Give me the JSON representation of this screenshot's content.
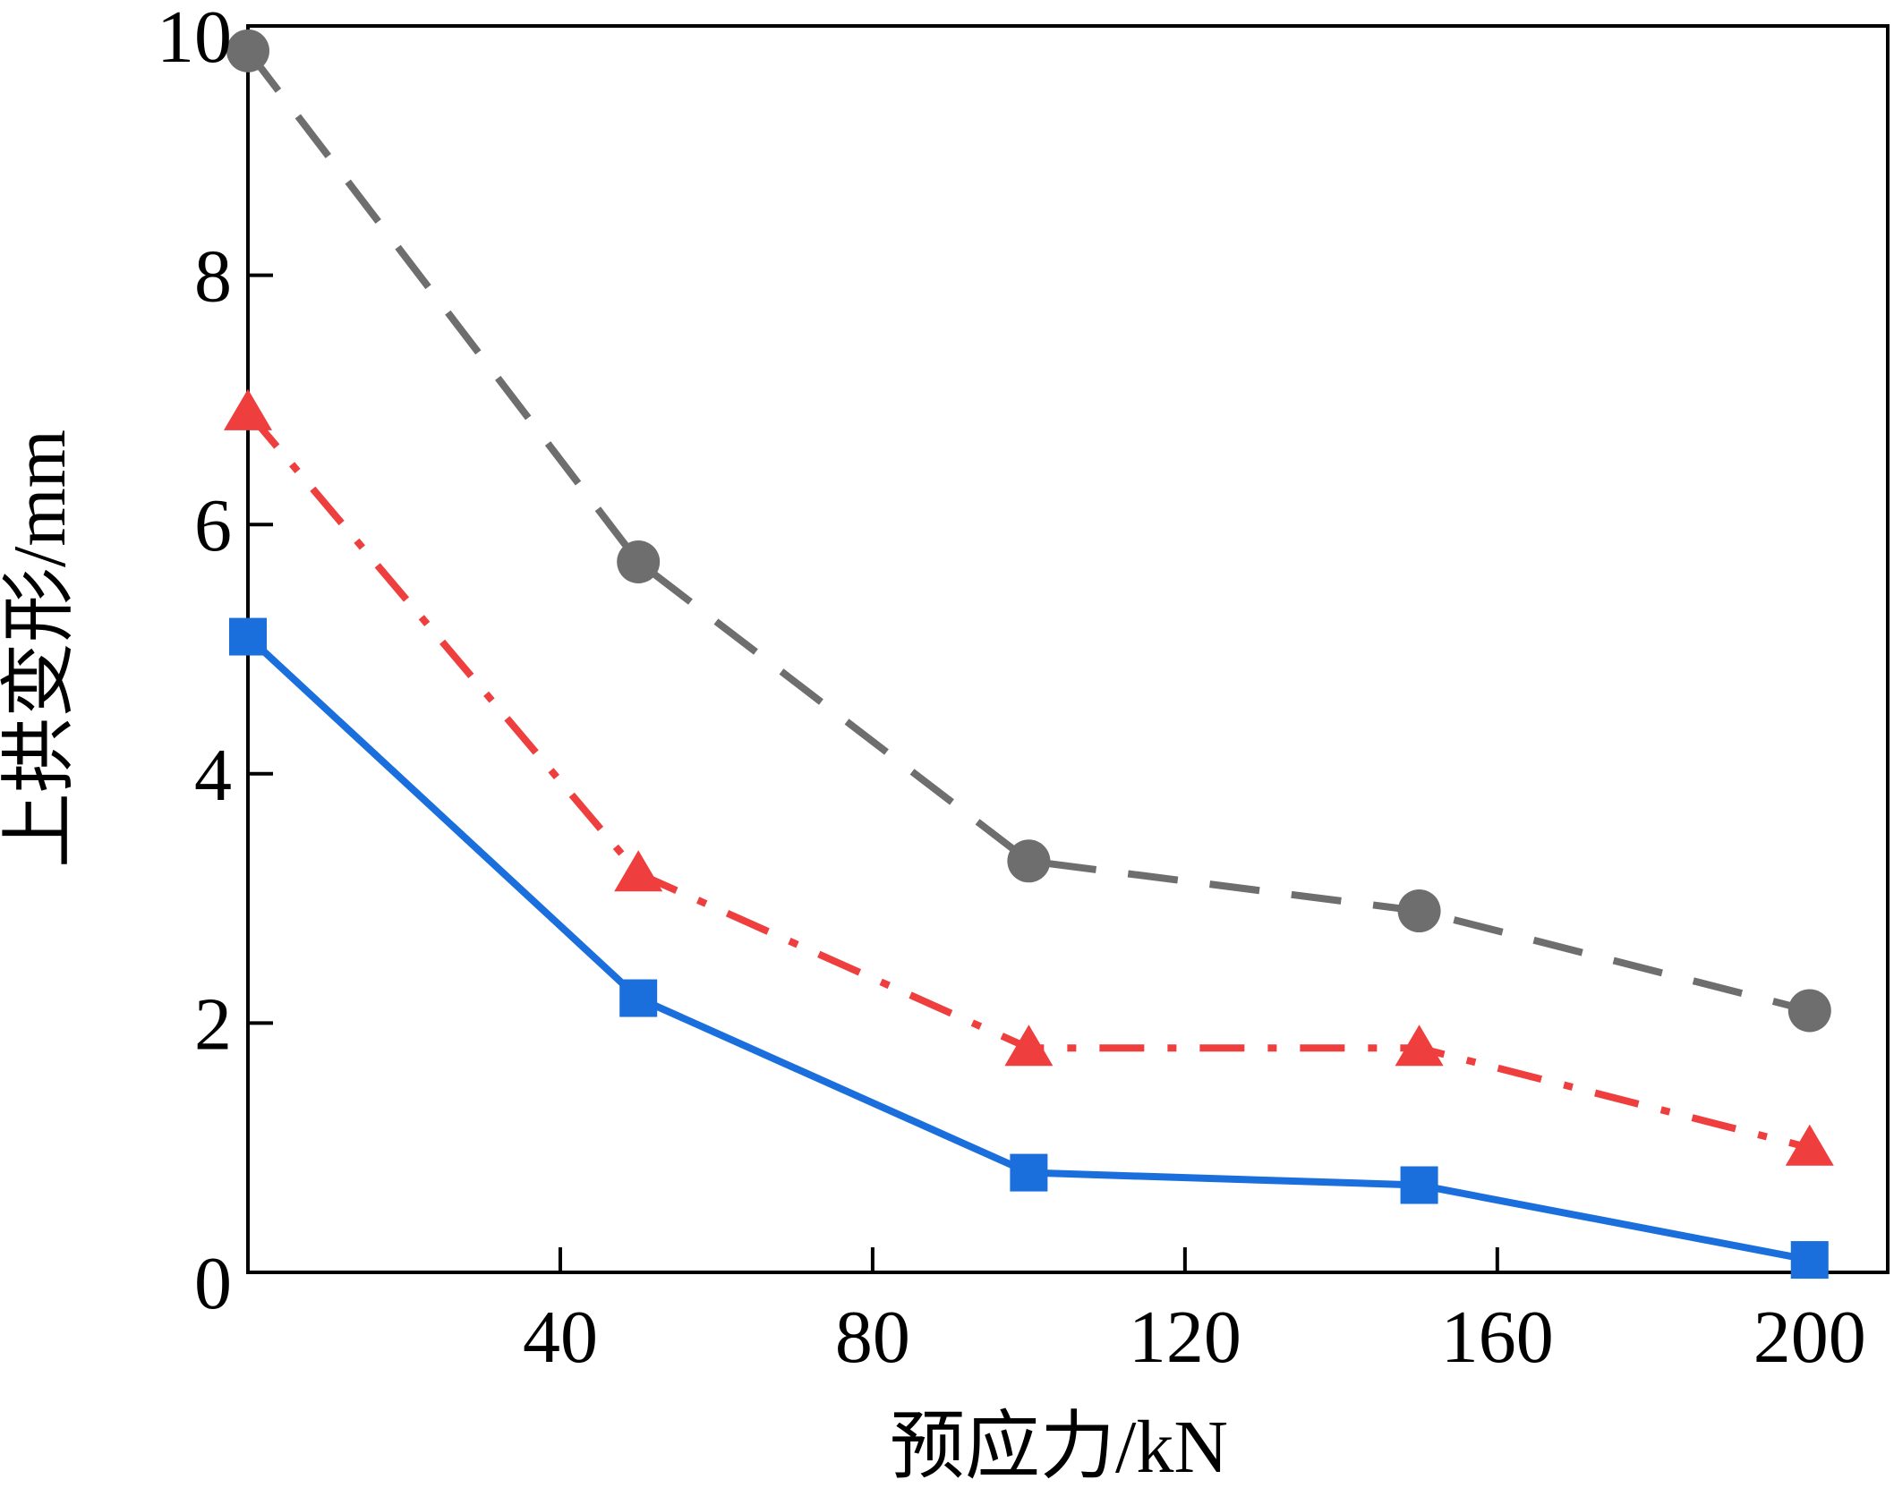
{
  "chart_data": {
    "type": "line",
    "title": "",
    "xlabel": "预应力/kN",
    "ylabel": "上拱变形/mm",
    "xlim": [
      0,
      210
    ],
    "ylim": [
      0,
      10
    ],
    "xticks": [
      40,
      80,
      120,
      160,
      200
    ],
    "yticks": [
      0,
      2,
      4,
      6,
      8,
      10
    ],
    "grid": false,
    "legend": "none",
    "series": [
      {
        "x": [
          0,
          50,
          100,
          150,
          200
        ],
        "values": [
          9.8,
          5.7,
          3.3,
          2.9,
          2.1
        ],
        "color": "#6e6e6e",
        "line_style": "dashed",
        "marker": "circle"
      },
      {
        "x": [
          0,
          50,
          100,
          150,
          200
        ],
        "values": [
          6.9,
          3.2,
          1.8,
          1.8,
          1.0
        ],
        "color": "#ee3e3e",
        "line_style": "dash-dot",
        "marker": "triangle"
      },
      {
        "x": [
          0,
          50,
          100,
          150,
          200
        ],
        "values": [
          5.1,
          2.2,
          0.8,
          0.7,
          0.1
        ],
        "color": "#1a6fdc",
        "line_style": "solid",
        "marker": "square"
      }
    ]
  }
}
